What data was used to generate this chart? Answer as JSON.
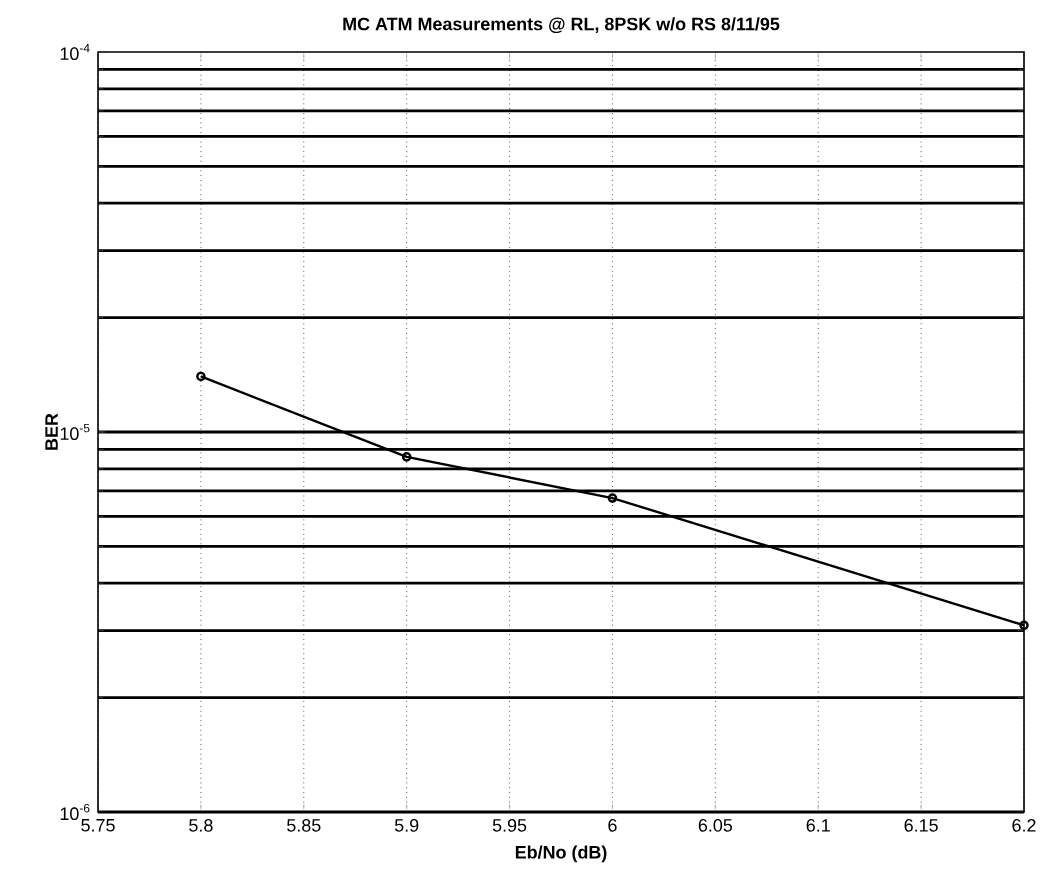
{
  "chart_data": {
    "type": "line",
    "title": "MC ATM Measurements @ RL, 8PSK w/o RS 8/11/95",
    "xlabel": "Eb/No (dB)",
    "ylabel": "BER",
    "x": [
      5.8,
      5.9,
      6.0,
      6.2
    ],
    "series": [
      {
        "color": "#000000",
        "values": [
          1.4e-05,
          8.6e-06,
          6.7e-06,
          3.1e-06
        ]
      }
    ],
    "log": "y",
    "xlim": [
      5.75,
      6.2
    ],
    "ylim": [
      1e-06,
      0.0001
    ],
    "xticks": [
      5.75,
      5.8,
      5.85,
      5.9,
      5.95,
      6,
      6.05,
      6.1,
      6.15,
      6.2
    ],
    "yticks": [
      {
        "value": 1e-06,
        "label": "10$^{-6}$"
      },
      {
        "value": 1e-05,
        "label": "10$^{-5}$"
      },
      {
        "value": 0.0001,
        "label": "10$^{-4}$"
      }
    ],
    "grid": true,
    "marker": "circle",
    "line_style": "solid"
  }
}
